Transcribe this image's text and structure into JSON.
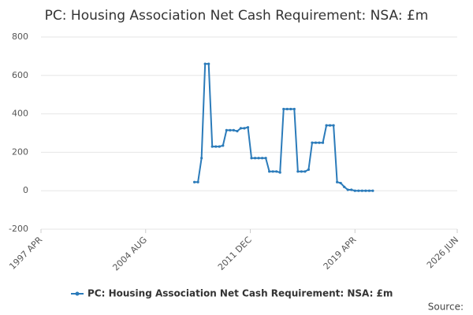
{
  "chart_data": {
    "type": "line",
    "title": "PC: Housing Association Net Cash Requirement: NSA: £m",
    "source": "Source:",
    "x": [
      "2008 JAN",
      "2008 APR",
      "2008 JUL",
      "2008 OCT",
      "2009 JAN",
      "2009 APR",
      "2009 JUL",
      "2009 OCT",
      "2010 JAN",
      "2010 APR",
      "2010 JUL",
      "2010 OCT",
      "2011 JAN",
      "2011 APR",
      "2011 JUL",
      "2011 OCT",
      "2012 JAN",
      "2012 APR",
      "2012 JUL",
      "2012 OCT",
      "2013 JAN",
      "2013 APR",
      "2013 JUL",
      "2013 OCT",
      "2014 JAN",
      "2014 APR",
      "2014 JUL",
      "2014 OCT",
      "2015 JAN",
      "2015 APR",
      "2015 JUL",
      "2015 OCT",
      "2016 JAN",
      "2016 APR",
      "2016 JUL",
      "2016 OCT",
      "2017 JAN",
      "2017 APR",
      "2017 JUL",
      "2017 OCT",
      "2018 JAN",
      "2018 APR",
      "2018 JUL",
      "2018 OCT",
      "2019 JAN",
      "2019 APR",
      "2019 JUL",
      "2019 OCT",
      "2020 JAN",
      "2020 APR",
      "2020 JUL"
    ],
    "series": [
      {
        "name": "PC: Housing Association Net Cash Requirement: NSA: £m",
        "color": "#2b7bba",
        "values": [
          45,
          45,
          170,
          660,
          660,
          230,
          230,
          230,
          235,
          315,
          315,
          315,
          310,
          325,
          325,
          330,
          170,
          170,
          170,
          170,
          170,
          100,
          100,
          100,
          95,
          425,
          425,
          425,
          425,
          100,
          100,
          100,
          110,
          250,
          250,
          250,
          250,
          340,
          340,
          340,
          45,
          40,
          20,
          5,
          5,
          0,
          0,
          0,
          0,
          0,
          0
        ]
      }
    ],
    "xlim": [
      "1997 APR",
      "2026 JUN"
    ],
    "xticks": [
      "1997 APR",
      "2004 AUG",
      "2011 DEC",
      "2019 APR",
      "2026 JUN"
    ],
    "ylim": [
      -200,
      800
    ],
    "yticks": [
      -200,
      0,
      200,
      400,
      600,
      800
    ],
    "grid": true
  }
}
